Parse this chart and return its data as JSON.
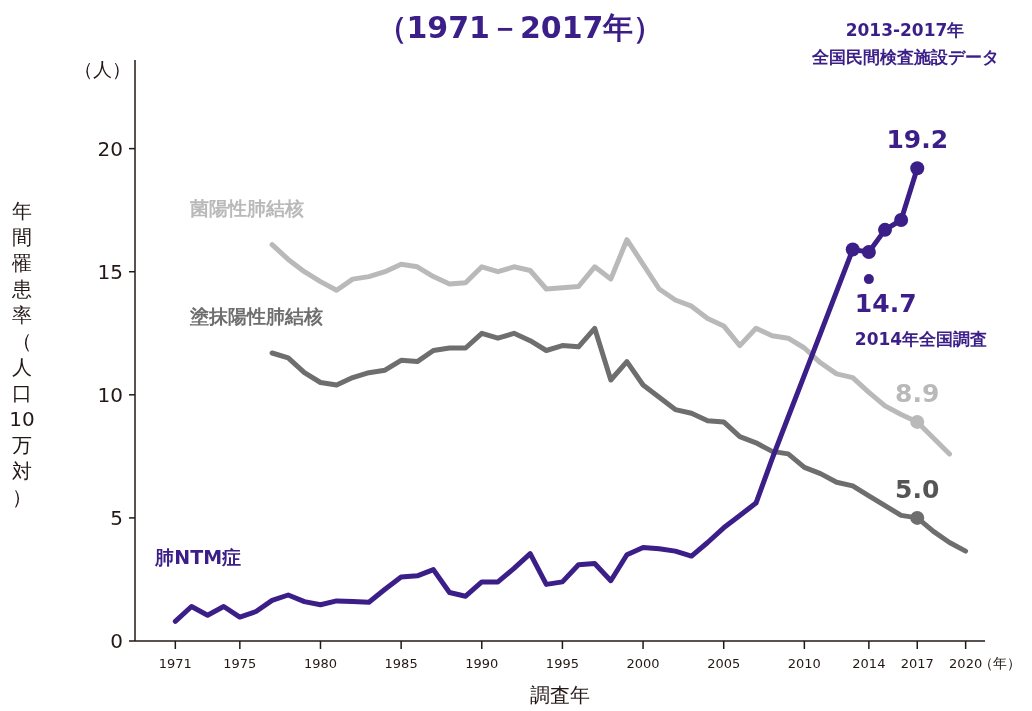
{
  "chart_data": {
    "type": "line",
    "title": "（1971－2017年）",
    "xlabel": "調査年",
    "ylabel": "年間罹患率（人口10万対）",
    "xlim": [
      1968.5,
      2021.2
    ],
    "ylim": [
      0,
      23.6
    ],
    "xticks": [
      1971,
      1975,
      1980,
      1985,
      1990,
      1995,
      2000,
      2005,
      2010,
      2014,
      2017,
      2020
    ],
    "yticks": [
      0,
      5,
      10,
      15,
      20
    ],
    "series": [
      {
        "name": "菌陽性肺結核",
        "color": "#b9b9b9",
        "x": [
          1977,
          1978,
          1979,
          1980,
          1981,
          1982,
          1983,
          1984,
          1985,
          1986,
          1987,
          1988,
          1989,
          1990,
          1991,
          1992,
          1993,
          1994,
          1995,
          1996,
          1997,
          1998,
          1999,
          2000,
          2001,
          2002,
          2003,
          2004,
          2005,
          2006,
          2007,
          2008,
          2009,
          2010,
          2011,
          2012,
          2013,
          2014,
          2015,
          2016,
          2017,
          2018,
          2019
        ],
        "values": [
          16.1,
          15.5,
          15.0,
          14.6,
          14.25,
          14.7,
          14.8,
          15.0,
          15.3,
          15.2,
          14.8,
          14.5,
          14.55,
          15.2,
          15.0,
          15.2,
          15.05,
          14.3,
          14.35,
          14.4,
          15.2,
          14.7,
          16.3,
          15.3,
          14.3,
          13.85,
          13.6,
          13.1,
          12.8,
          12.0,
          12.7,
          12.4,
          12.3,
          11.9,
          11.3,
          10.85,
          10.7,
          10.1,
          9.55,
          9.2,
          8.9,
          8.25,
          7.6
        ]
      },
      {
        "name": "塗抹陽性肺結核",
        "color": "#6e6e6e",
        "x": [
          1977,
          1978,
          1979,
          1980,
          1981,
          1982,
          1983,
          1984,
          1985,
          1986,
          1987,
          1988,
          1989,
          1990,
          1991,
          1992,
          1993,
          1994,
          1995,
          1996,
          1997,
          1998,
          1999,
          2000,
          2001,
          2002,
          2003,
          2004,
          2005,
          2006,
          2007,
          2008,
          2009,
          2010,
          2011,
          2012,
          2013,
          2014,
          2015,
          2016,
          2017,
          2018,
          2019,
          2020
        ],
        "values": [
          11.7,
          11.5,
          10.9,
          10.5,
          10.4,
          10.7,
          10.9,
          11.0,
          11.4,
          11.35,
          11.8,
          11.9,
          11.9,
          12.5,
          12.3,
          12.5,
          12.2,
          11.8,
          12.0,
          11.95,
          12.7,
          10.6,
          11.35,
          10.4,
          9.9,
          9.4,
          9.25,
          8.95,
          8.9,
          8.3,
          8.05,
          7.7,
          7.6,
          7.05,
          6.8,
          6.45,
          6.3,
          5.9,
          5.5,
          5.1,
          5.0,
          4.45,
          4.0,
          3.65
        ]
      },
      {
        "name": "肺NTM症",
        "color": "#3b1e87",
        "x": [
          1971,
          1972,
          1973,
          1974,
          1975,
          1976,
          1977,
          1978,
          1979,
          1980,
          1981,
          1982,
          1983,
          1984,
          1985,
          1986,
          1987,
          1988,
          1989,
          1990,
          1991,
          1992,
          1993,
          1994,
          1995,
          1996,
          1997,
          1998,
          1999,
          2000,
          2001,
          2002,
          2003,
          2004,
          2005,
          2006,
          2007,
          2008,
          2009,
          2010,
          2011,
          2012,
          2013
        ],
        "values": [
          0.8,
          1.4,
          1.05,
          1.4,
          0.97,
          1.2,
          1.65,
          1.87,
          1.6,
          1.47,
          1.63,
          1.6,
          1.57,
          2.1,
          2.6,
          2.65,
          2.9,
          1.97,
          1.82,
          2.4,
          2.4,
          2.95,
          3.55,
          2.3,
          2.4,
          3.1,
          3.15,
          2.45,
          3.5,
          3.8,
          3.75,
          3.65,
          3.45,
          4.0,
          4.6,
          5.1,
          5.6,
          7.4,
          9.1,
          10.8,
          12.5,
          14.2,
          15.9
        ]
      },
      {
        "color": "#3b1e87",
        "marker": "circle",
        "x": [
          2013,
          2014,
          2015,
          2016,
          2017
        ],
        "values": [
          15.9,
          15.8,
          16.7,
          17.1,
          19.2
        ],
        "value_labels": [
          null,
          null,
          null,
          null,
          "19.2"
        ]
      },
      {
        "type": "scatter",
        "color": "#b9b9b9",
        "marker": "circle",
        "x": [
          2017
        ],
        "values": [
          8.9
        ],
        "value_labels": [
          "8.9"
        ]
      },
      {
        "type": "scatter",
        "color": "#6e6e6e",
        "marker": "circle",
        "x": [
          2017
        ],
        "values": [
          5.0
        ],
        "value_labels": [
          "5.0"
        ]
      },
      {
        "type": "scatter",
        "color": "#3b1e87",
        "marker": "circle",
        "x": [
          2014
        ],
        "values": [
          14.7
        ],
        "value_labels": [
          "14.7"
        ]
      }
    ],
    "annotations": [
      "2014年全国調査",
      "2013-2017年",
      "全国民間検査施設データ",
      "（人）",
      "（年）"
    ],
    "grid": false,
    "legend": false
  }
}
